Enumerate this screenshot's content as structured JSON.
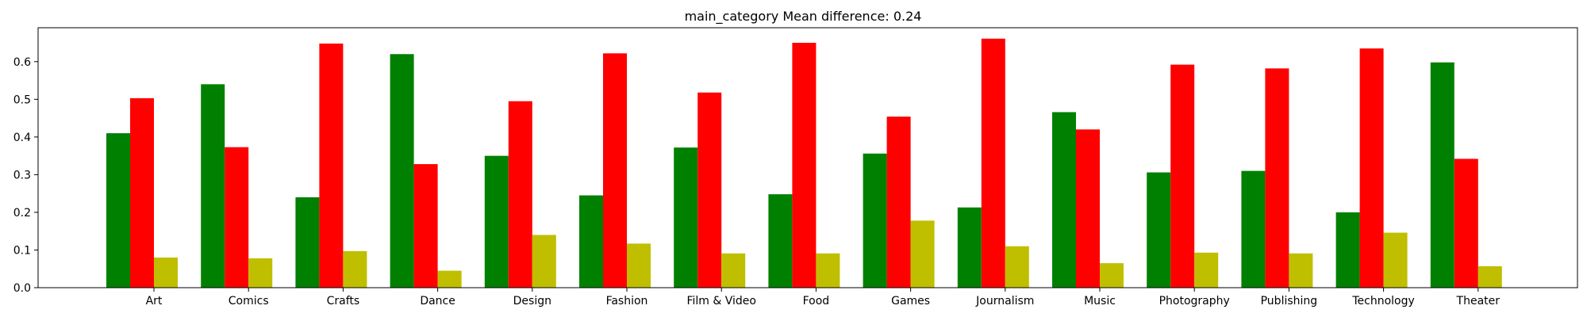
{
  "chart_data": {
    "type": "bar",
    "title": "main_category Mean difference: 0.24",
    "xlabel": "",
    "ylabel": "",
    "categories": [
      "Art",
      "Comics",
      "Crafts",
      "Dance",
      "Design",
      "Fashion",
      "Film & Video",
      "Food",
      "Games",
      "Journalism",
      "Music",
      "Photography",
      "Publishing",
      "Technology",
      "Theater"
    ],
    "series": [
      {
        "color": "#008000",
        "values": [
          0.41,
          0.54,
          0.24,
          0.62,
          0.35,
          0.245,
          0.372,
          0.248,
          0.356,
          0.213,
          0.466,
          0.306,
          0.31,
          0.2,
          0.598
        ]
      },
      {
        "color": "#ff0000",
        "values": [
          0.503,
          0.373,
          0.648,
          0.328,
          0.495,
          0.622,
          0.518,
          0.65,
          0.454,
          0.661,
          0.42,
          0.592,
          0.582,
          0.635,
          0.342
        ]
      },
      {
        "color": "#bfbf00",
        "values": [
          0.08,
          0.078,
          0.097,
          0.045,
          0.14,
          0.117,
          0.091,
          0.091,
          0.178,
          0.11,
          0.065,
          0.093,
          0.091,
          0.146,
          0.057
        ]
      }
    ],
    "ylim": [
      0,
      0.69
    ],
    "yticks": [
      0.0,
      0.1,
      0.2,
      0.3,
      0.4,
      0.5,
      0.6
    ],
    "ytick_labels": [
      "0.0",
      "0.1",
      "0.2",
      "0.3",
      "0.4",
      "0.5",
      "0.6"
    ],
    "grid": false,
    "legend": "none"
  }
}
